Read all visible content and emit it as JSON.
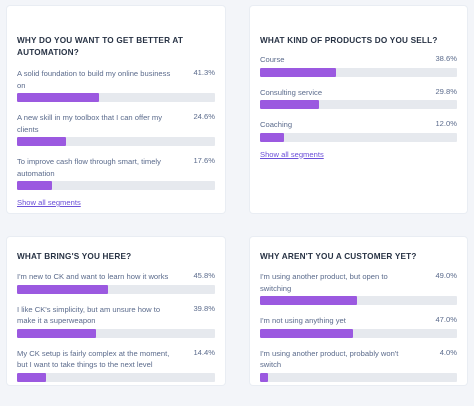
{
  "cards": [
    {
      "title": "WHY DO YOU WANT TO GET BETTER AT AUTOMATION?",
      "rows": [
        {
          "label": "A solid foundation to build my online business on",
          "pct": "41.3%",
          "value": 41.3
        },
        {
          "label": "A new skill in my toolbox that I can offer my clients",
          "pct": "24.6%",
          "value": 24.6
        },
        {
          "label": "To improve cash flow through smart, timely automation",
          "pct": "17.6%",
          "value": 17.6
        }
      ],
      "link": "Show all segments"
    },
    {
      "title": "WHAT KIND OF PRODUCTS DO YOU SELL?",
      "rows": [
        {
          "label": "Course",
          "pct": "38.6%",
          "value": 38.6
        },
        {
          "label": "Consulting service",
          "pct": "29.8%",
          "value": 29.8
        },
        {
          "label": "Coaching",
          "pct": "12.0%",
          "value": 12.0
        }
      ],
      "link": "Show all segments"
    },
    {
      "title": "WHAT BRING'S YOU HERE?",
      "rows": [
        {
          "label": "I'm new to CK and want to learn how it works",
          "pct": "45.8%",
          "value": 45.8
        },
        {
          "label": "I like CK's simplicity, but am unsure how to make it a superweapon",
          "pct": "39.8%",
          "value": 39.8
        },
        {
          "label": "My CK setup is fairly complex at the moment, but I want to take things to the next level",
          "pct": "14.4%",
          "value": 14.4
        }
      ]
    },
    {
      "title": "WHY AREN'T YOU A CUSTOMER YET?",
      "rows": [
        {
          "label": "I'm using another product, but open to switching",
          "pct": "49.0%",
          "value": 49.0
        },
        {
          "label": "I'm not using anything yet",
          "pct": "47.0%",
          "value": 47.0
        },
        {
          "label": "I'm using another product, probably won't switch",
          "pct": "4.0%",
          "value": 4.0
        }
      ]
    }
  ],
  "colors": {
    "accent": "#9b59e0",
    "link": "#6b4fd8",
    "track": "#e6e9ee"
  }
}
